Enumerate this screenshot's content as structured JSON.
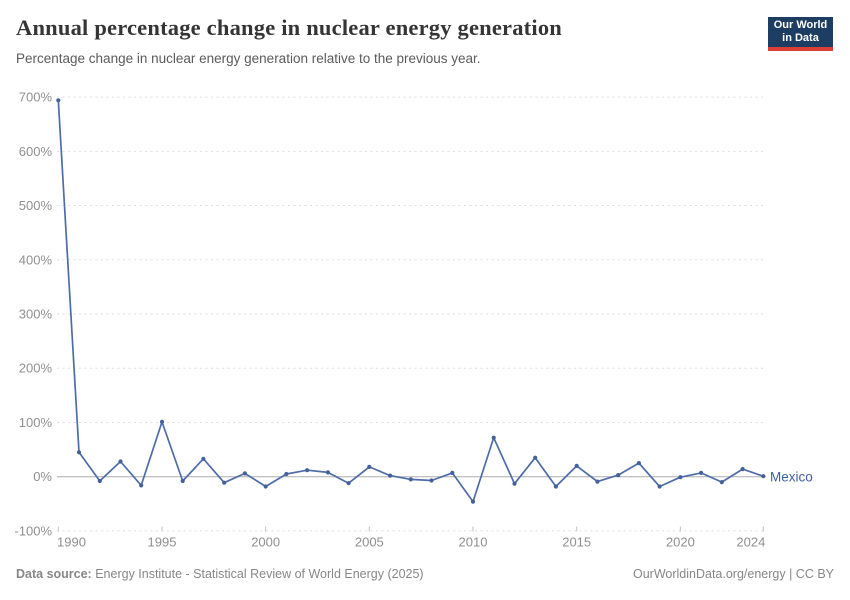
{
  "header": {
    "title": "Annual percentage change in nuclear energy generation",
    "subtitle": "Percentage change in nuclear energy generation relative to the previous year.",
    "logo_line1": "Our World",
    "logo_line2": "in Data"
  },
  "chart_data": {
    "type": "line",
    "title": "Annual percentage change in nuclear energy generation",
    "series": [
      {
        "name": "Mexico",
        "years": [
          1990,
          1991,
          1992,
          1993,
          1994,
          1995,
          1996,
          1997,
          1998,
          1999,
          2000,
          2001,
          2002,
          2003,
          2004,
          2005,
          2006,
          2007,
          2008,
          2009,
          2010,
          2011,
          2012,
          2013,
          2014,
          2015,
          2016,
          2017,
          2018,
          2019,
          2020,
          2021,
          2022,
          2023,
          2024
        ],
        "values": [
          694,
          45,
          -8,
          28,
          -16,
          101,
          -8,
          33,
          -11,
          6,
          -18,
          5,
          12,
          8,
          -12,
          18,
          2,
          -5,
          -7,
          7,
          -46,
          72,
          -13,
          35,
          -18,
          20,
          -9,
          3,
          25,
          -18,
          -1,
          7,
          -10,
          14,
          1
        ]
      }
    ],
    "xlabel": "",
    "ylabel": "",
    "xlim": [
      1990,
      2024
    ],
    "ylim": [
      -100,
      700
    ],
    "x_ticks": [
      1990,
      1995,
      2000,
      2005,
      2010,
      2015,
      2020,
      2024
    ],
    "y_ticks": [
      700,
      600,
      500,
      400,
      300,
      200,
      100,
      0,
      -100
    ],
    "y_tick_suffix": "%",
    "grid": "horizontal-dashed",
    "legend": "inline-end-label"
  },
  "theme": {
    "line_color": "#4e6ca7",
    "point_color": "#44619c",
    "grid_color": "#dedede",
    "zero_line_color": "#adadad",
    "axis_tick_color": "#c2c2c2",
    "axis_text_color": "#909090",
    "entity_label_color": "#40619e",
    "logo_bg": "#1d3d63",
    "logo_red": "#dc3e34"
  },
  "footer": {
    "source_label": "Data source:",
    "source_text": " Energy Institute - Statistical Review of World Energy (2025)",
    "right_text": "OurWorldinData.org/energy | CC BY"
  }
}
